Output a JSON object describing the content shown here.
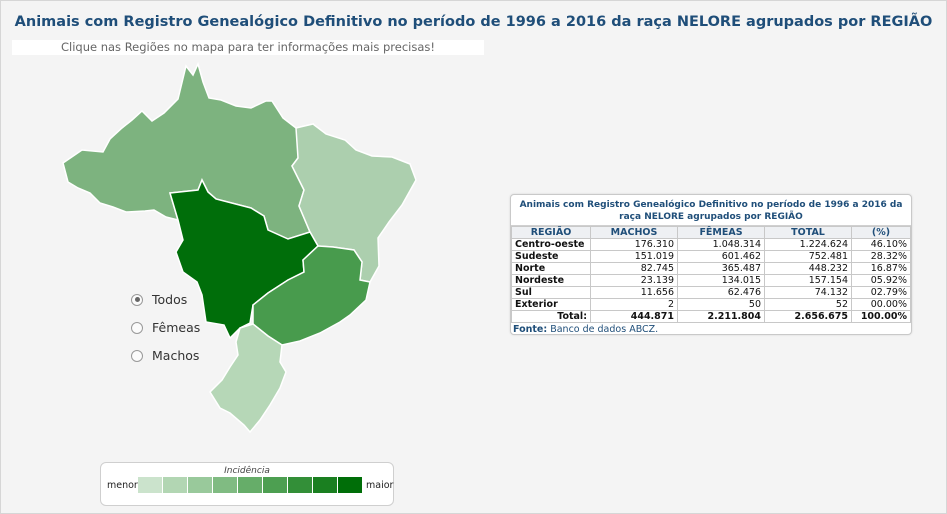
{
  "title": "Animais com Registro Genealógico Definitivo no período de 1996 a 2016 da raça NELORE agrupados por REGIÃO",
  "hint": "Clique nas Regiões no mapa para ter informações mais precisas!",
  "regions": {
    "norte": {
      "color": "#7db37f"
    },
    "nordeste": {
      "color": "#accfae"
    },
    "centro_oeste": {
      "color": "#006e0a"
    },
    "sudeste": {
      "color": "#489b4d"
    },
    "sul": {
      "color": "#b6d7b7"
    }
  },
  "filter": {
    "options": [
      {
        "label": "Todos",
        "selected": true
      },
      {
        "label": "Fêmeas",
        "selected": false
      },
      {
        "label": "Machos",
        "selected": false
      }
    ]
  },
  "legend": {
    "title": "Incidência",
    "min_label": "menor",
    "max_label": "maior",
    "colors": [
      "#cbe3cc",
      "#b2d6b3",
      "#99c99b",
      "#80bb82",
      "#66ad69",
      "#4d9f51",
      "#338f38",
      "#1a7f20",
      "#006e08"
    ]
  },
  "table": {
    "title": "Animais com Registro Genealógico Definitivo no período de 1996 a 2016 da raça NELORE agrupados por REGIÃO",
    "headers": [
      "REGIÃO",
      "MACHOS",
      "FÊMEAS",
      "TOTAL",
      "(%)"
    ],
    "rows": [
      [
        "Centro-oeste",
        "176.310",
        "1.048.314",
        "1.224.624",
        "46.10%"
      ],
      [
        "Sudeste",
        "151.019",
        "601.462",
        "752.481",
        "28.32%"
      ],
      [
        "Norte",
        "82.745",
        "365.487",
        "448.232",
        "16.87%"
      ],
      [
        "Nordeste",
        "23.139",
        "134.015",
        "157.154",
        "05.92%"
      ],
      [
        "Sul",
        "11.656",
        "62.476",
        "74.132",
        "02.79%"
      ],
      [
        "Exterior",
        "2",
        "50",
        "52",
        "00.00%"
      ]
    ],
    "total": [
      "Total:",
      "444.871",
      "2.211.804",
      "2.656.675",
      "100.00%"
    ],
    "source_label": "Fonte:",
    "source_text": "Banco de dados ABCZ."
  }
}
